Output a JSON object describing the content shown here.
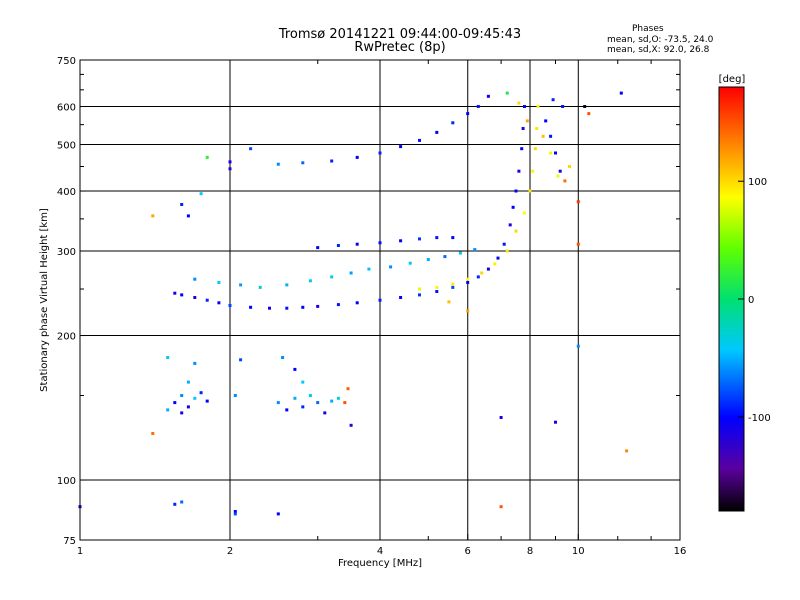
{
  "chart_data": {
    "type": "scatter",
    "title": "Tromsø 20141221 09:44:00-09:45:43",
    "subtitle": "RwPretec (8p)",
    "xlabel": "Frequency [MHz]",
    "ylabel": "Stationary phase Virtual Height [km]",
    "x_scale": "log",
    "y_scale": "log",
    "xlim": [
      1,
      16
    ],
    "ylim": [
      75,
      750
    ],
    "x_ticks": [
      "1",
      "2",
      "4",
      "6",
      "8",
      "10",
      "16"
    ],
    "x_tick_values": [
      1,
      2,
      4,
      6,
      8,
      10,
      16
    ],
    "y_ticks": [
      "75",
      "100",
      "200",
      "300",
      "400",
      "500",
      "600",
      "750"
    ],
    "y_tick_values": [
      75,
      100,
      200,
      300,
      400,
      500,
      600,
      750
    ],
    "grid": true,
    "stats": {
      "heading": "Phases",
      "line_o": "mean, sd,O: -73.5, 24.0",
      "line_x": "mean, sd,X:  92.0, 26.8"
    },
    "colorbar": {
      "label": "[deg]",
      "ticks": [
        "100",
        "0",
        "-100"
      ],
      "tick_values": [
        100,
        0,
        -100
      ],
      "range": [
        -180,
        180
      ]
    },
    "series": [
      {
        "points": [
          [
            1.55,
            245,
            -110
          ],
          [
            1.6,
            243,
            -100
          ],
          [
            1.7,
            240,
            -115
          ],
          [
            1.8,
            237,
            -90
          ],
          [
            1.9,
            234,
            -105
          ],
          [
            2.0,
            231,
            -80
          ],
          [
            2.2,
            229,
            -100
          ],
          [
            2.4,
            228,
            -110
          ],
          [
            2.6,
            228,
            -95
          ],
          [
            2.8,
            229,
            -100
          ],
          [
            3.0,
            230,
            -110
          ],
          [
            3.3,
            232,
            -95
          ],
          [
            3.6,
            234,
            -100
          ],
          [
            4.0,
            237,
            -90
          ],
          [
            4.4,
            240,
            -100
          ],
          [
            4.8,
            243,
            -85
          ],
          [
            5.2,
            247,
            -95
          ],
          [
            5.6,
            252,
            -80
          ],
          [
            6.0,
            258,
            -100
          ],
          [
            6.3,
            265,
            -90
          ],
          [
            6.6,
            275,
            -110
          ],
          [
            6.9,
            290,
            -100
          ],
          [
            7.1,
            310,
            -95
          ],
          [
            7.3,
            340,
            -110
          ],
          [
            7.4,
            370,
            -100
          ],
          [
            7.5,
            400,
            -105
          ],
          [
            7.6,
            440,
            -110
          ],
          [
            7.7,
            490,
            -100
          ],
          [
            7.75,
            540,
            -115
          ],
          [
            7.8,
            600,
            -100
          ],
          [
            1.7,
            262,
            -60
          ],
          [
            1.9,
            258,
            -40
          ],
          [
            2.1,
            255,
            -55
          ],
          [
            2.3,
            252,
            -30
          ],
          [
            2.6,
            255,
            -50
          ],
          [
            2.9,
            260,
            -40
          ],
          [
            3.2,
            265,
            -35
          ],
          [
            3.5,
            270,
            -55
          ],
          [
            3.8,
            275,
            -45
          ],
          [
            4.2,
            278,
            -60
          ],
          [
            4.6,
            283,
            -40
          ],
          [
            5.0,
            288,
            -50
          ],
          [
            5.4,
            292,
            -70
          ],
          [
            5.8,
            297,
            -40
          ],
          [
            6.2,
            302,
            -60
          ],
          [
            3.0,
            305,
            -100
          ],
          [
            3.3,
            308,
            -90
          ],
          [
            3.6,
            310,
            -105
          ],
          [
            4.0,
            312,
            -95
          ],
          [
            4.4,
            315,
            -100
          ],
          [
            4.8,
            318,
            -85
          ],
          [
            5.2,
            320,
            -95
          ],
          [
            5.6,
            320,
            -100
          ],
          [
            4.8,
            250,
            80
          ],
          [
            5.2,
            252,
            90
          ],
          [
            5.6,
            256,
            95
          ],
          [
            6.0,
            262,
            85
          ],
          [
            6.4,
            270,
            100
          ],
          [
            6.8,
            282,
            90
          ],
          [
            7.2,
            300,
            95
          ],
          [
            7.5,
            330,
            100
          ],
          [
            7.8,
            360,
            85
          ],
          [
            8.0,
            400,
            95
          ],
          [
            8.1,
            440,
            90
          ],
          [
            8.2,
            490,
            100
          ],
          [
            8.25,
            540,
            95
          ],
          [
            8.3,
            600,
            90
          ],
          [
            7.2,
            640,
            10
          ],
          [
            7.6,
            610,
            100
          ],
          [
            7.9,
            560,
            120
          ],
          [
            8.5,
            520,
            110
          ],
          [
            8.8,
            480,
            90
          ],
          [
            9.1,
            430,
            80
          ],
          [
            8.6,
            560,
            -100
          ],
          [
            8.8,
            520,
            -95
          ],
          [
            9.0,
            480,
            -100
          ],
          [
            9.2,
            440,
            -110
          ],
          [
            8.9,
            620,
            -90
          ],
          [
            9.3,
            600,
            -95
          ],
          [
            2.5,
            455,
            -60
          ],
          [
            2.8,
            458,
            -70
          ],
          [
            3.2,
            462,
            -90
          ],
          [
            3.6,
            470,
            -100
          ],
          [
            4.0,
            480,
            -90
          ],
          [
            4.4,
            495,
            -100
          ],
          [
            4.8,
            510,
            -95
          ],
          [
            5.2,
            530,
            -100
          ],
          [
            5.6,
            555,
            -90
          ],
          [
            6.0,
            580,
            -100
          ],
          [
            6.3,
            600,
            -95
          ],
          [
            6.6,
            630,
            -105
          ],
          [
            1.55,
            145,
            -100
          ],
          [
            1.6,
            150,
            -60
          ],
          [
            1.65,
            142,
            -110
          ],
          [
            1.7,
            148,
            -40
          ],
          [
            1.75,
            152,
            -90
          ],
          [
            1.8,
            146,
            -100
          ],
          [
            1.65,
            160,
            -50
          ],
          [
            1.5,
            180,
            -40
          ],
          [
            1.7,
            175,
            -60
          ],
          [
            1.6,
            138,
            -110
          ],
          [
            2.5,
            145,
            -60
          ],
          [
            2.6,
            140,
            -100
          ],
          [
            2.7,
            148,
            -50
          ],
          [
            2.8,
            142,
            -90
          ],
          [
            2.9,
            150,
            -40
          ],
          [
            3.0,
            145,
            -70
          ],
          [
            3.1,
            138,
            -110
          ],
          [
            3.2,
            146,
            -50
          ],
          [
            2.55,
            180,
            -60
          ],
          [
            2.7,
            170,
            -100
          ],
          [
            2.8,
            160,
            -40
          ],
          [
            3.3,
            148,
            -30
          ],
          [
            1.4,
            355,
            120
          ],
          [
            1.6,
            375,
            -90
          ],
          [
            1.65,
            355,
            -100
          ],
          [
            1.8,
            470,
            20
          ],
          [
            1.75,
            395,
            -40
          ],
          [
            2.0,
            460,
            -110
          ],
          [
            2.0,
            445,
            -120
          ],
          [
            2.2,
            490,
            -80
          ],
          [
            1.4,
            125,
            140
          ],
          [
            1.5,
            140,
            -50
          ],
          [
            2.05,
            150,
            -60
          ],
          [
            2.1,
            178,
            -80
          ],
          [
            3.4,
            145,
            150
          ],
          [
            3.45,
            155,
            145
          ],
          [
            3.5,
            130,
            -120
          ],
          [
            1.0,
            88,
            -100
          ],
          [
            1.55,
            89,
            -90
          ],
          [
            1.6,
            90,
            -70
          ],
          [
            2.05,
            86,
            -100
          ],
          [
            2.05,
            85,
            -80
          ],
          [
            2.5,
            85,
            -100
          ],
          [
            7.0,
            88,
            150
          ],
          [
            7.0,
            135,
            -110
          ],
          [
            9.0,
            132,
            -110
          ],
          [
            10.0,
            190,
            -60
          ],
          [
            10.0,
            310,
            150
          ],
          [
            10.0,
            380,
            160
          ],
          [
            10.3,
            600,
            -170
          ],
          [
            10.5,
            580,
            150
          ],
          [
            12.2,
            640,
            -100
          ],
          [
            12.5,
            115,
            130
          ],
          [
            9.4,
            420,
            140
          ],
          [
            9.6,
            450,
            100
          ],
          [
            6.0,
            225,
            120
          ],
          [
            5.5,
            235,
            110
          ]
        ]
      }
    ]
  }
}
